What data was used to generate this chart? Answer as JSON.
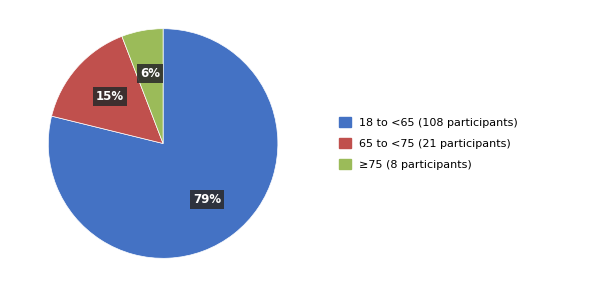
{
  "slices": [
    108,
    21,
    8
  ],
  "percentages": [
    "79%",
    "15%",
    "6%"
  ],
  "colors": [
    "#4472C4",
    "#C0504D",
    "#9BBB59"
  ],
  "labels": [
    "18 to <65 (108 participants)",
    "65 to <75 (21 participants)",
    "≥75 (8 participants)"
  ],
  "legend_colors": [
    "#4472C4",
    "#C0504D",
    "#9BBB59"
  ],
  "background_color": "#ffffff",
  "label_bg_color": "#2b2b2b",
  "label_text_color": "#ffffff",
  "startangle": 90,
  "figsize": [
    5.93,
    2.87
  ],
  "label_fontsize": 8.5,
  "legend_fontsize": 8
}
